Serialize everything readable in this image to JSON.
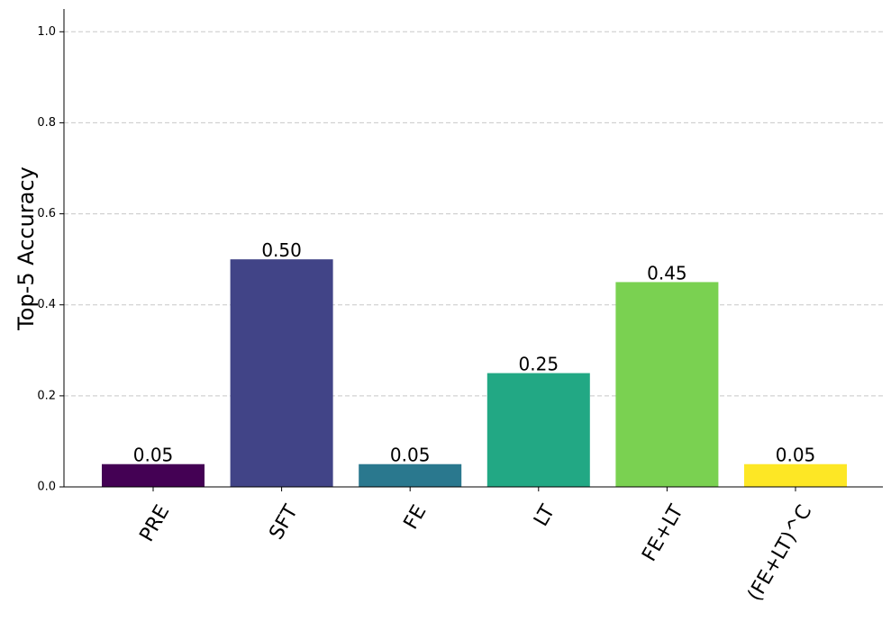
{
  "chart_data": {
    "type": "bar",
    "categories": [
      "PRE",
      "SFT",
      "FE",
      "LT",
      "FE+LT",
      "(FE+LT)^C"
    ],
    "values": [
      0.05,
      0.5,
      0.05,
      0.25,
      0.45,
      0.05
    ],
    "value_labels": [
      "0.05",
      "0.50",
      "0.05",
      "0.25",
      "0.45",
      "0.05"
    ],
    "colors": [
      "#440154",
      "#414487",
      "#2a788e",
      "#22a884",
      "#7ad151",
      "#fde725"
    ],
    "title": "",
    "xlabel": "",
    "ylabel": "Top-5 Accuracy",
    "ylim": [
      0,
      1.05
    ],
    "yticks": [
      0.0,
      0.2,
      0.4,
      0.6,
      0.8,
      1.0
    ],
    "ytick_labels": [
      "0.0",
      "0.2",
      "0.4",
      "0.6",
      "0.8",
      "1.0"
    ],
    "grid": "y-dashed",
    "legend": "none"
  }
}
